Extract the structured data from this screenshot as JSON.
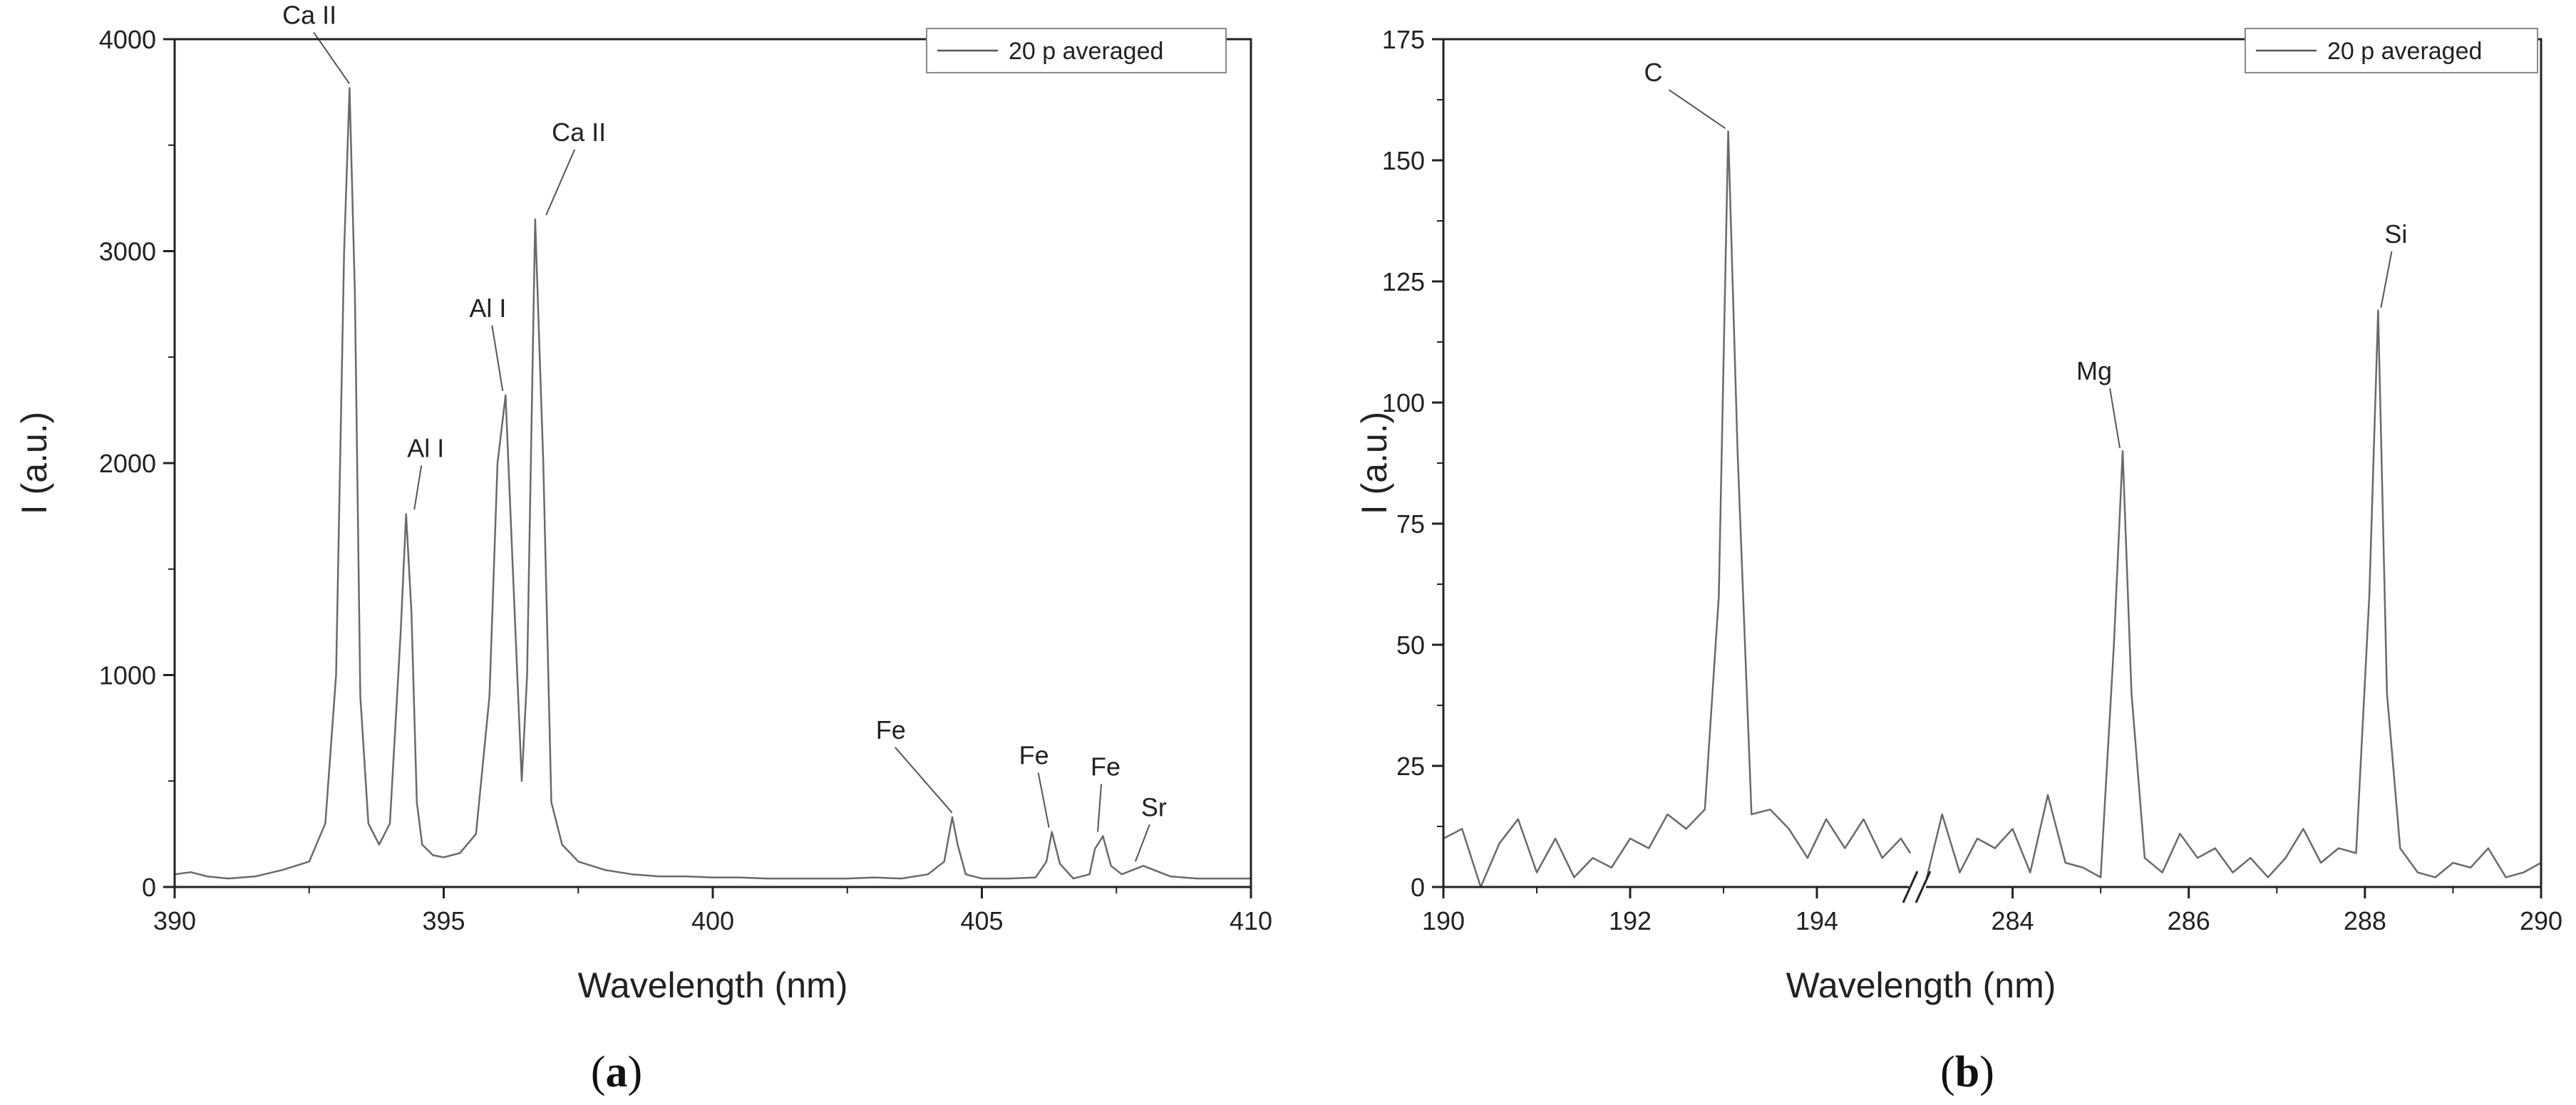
{
  "chart_data": [
    {
      "panel": "(a)",
      "panel_letter": "a",
      "type": "line",
      "xlabel": "Wavelength (nm)",
      "ylabel": "I (a.u.)",
      "xlim": [
        390,
        410
      ],
      "ylim": [
        0,
        4000
      ],
      "xticks": [
        390,
        395,
        400,
        405,
        410
      ],
      "yticks": [
        0,
        1000,
        2000,
        3000,
        4000
      ],
      "legend": {
        "label": "20 p averaged",
        "position": "top-right"
      },
      "series": [
        {
          "name": "20 p averaged",
          "x": [
            390.0,
            390.3,
            390.6,
            391.0,
            391.5,
            392.0,
            392.5,
            392.8,
            393.0,
            393.15,
            393.25,
            393.35,
            393.45,
            393.6,
            393.8,
            394.0,
            394.2,
            394.3,
            394.4,
            394.5,
            394.6,
            394.8,
            395.0,
            395.3,
            395.6,
            395.85,
            396.0,
            396.15,
            396.3,
            396.45,
            396.55,
            396.7,
            396.85,
            397.0,
            397.2,
            397.5,
            398.0,
            398.5,
            399.0,
            399.5,
            400.0,
            400.5,
            401.0,
            401.5,
            402.0,
            402.5,
            403.0,
            403.5,
            404.0,
            404.3,
            404.45,
            404.55,
            404.7,
            405.0,
            405.5,
            406.0,
            406.2,
            406.3,
            406.45,
            406.7,
            407.0,
            407.1,
            407.25,
            407.4,
            407.6,
            407.8,
            408.0,
            408.5,
            409.0,
            409.5,
            410.0
          ],
          "y": [
            60,
            70,
            50,
            40,
            50,
            80,
            120,
            300,
            1000,
            3000,
            3770,
            2800,
            900,
            300,
            200,
            300,
            1200,
            1760,
            1300,
            400,
            200,
            150,
            140,
            160,
            250,
            900,
            2000,
            2320,
            1400,
            500,
            1000,
            3150,
            2000,
            400,
            200,
            120,
            80,
            60,
            50,
            50,
            45,
            45,
            40,
            40,
            40,
            40,
            45,
            40,
            60,
            120,
            330,
            200,
            60,
            40,
            40,
            45,
            120,
            260,
            110,
            40,
            60,
            180,
            240,
            100,
            60,
            80,
            100,
            50,
            40,
            40,
            40
          ]
        }
      ],
      "annotations": [
        {
          "text": "Ca II",
          "x": 393.3,
          "y": 3770
        },
        {
          "text": "Al I",
          "x": 394.4,
          "y": 1760
        },
        {
          "text": "Al I",
          "x": 396.15,
          "y": 2320
        },
        {
          "text": "Ca II",
          "x": 396.85,
          "y": 3150
        },
        {
          "text": "Fe",
          "x": 404.5,
          "y": 330
        },
        {
          "text": "Fe",
          "x": 406.3,
          "y": 260
        },
        {
          "text": "Fe",
          "x": 407.1,
          "y": 240
        },
        {
          "text": "Sr",
          "x": 407.8,
          "y": 100
        }
      ]
    },
    {
      "panel": "(b)",
      "panel_letter": "b",
      "type": "line",
      "xlabel": "Wavelength (nm)",
      "ylabel": "I (a.u.)",
      "x_axis_break": {
        "segments": [
          [
            190,
            195
          ],
          [
            283,
            290
          ]
        ]
      },
      "xticks": [
        190,
        192,
        194,
        284,
        286,
        288,
        290
      ],
      "ylim": [
        0,
        175
      ],
      "yticks": [
        0,
        25,
        50,
        75,
        100,
        125,
        150,
        175
      ],
      "legend": {
        "label": "20 p averaged",
        "position": "top-right"
      },
      "series": [
        {
          "name": "20 p averaged",
          "x": [
            190.0,
            190.2,
            190.4,
            190.6,
            190.8,
            191.0,
            191.2,
            191.4,
            191.6,
            191.8,
            192.0,
            192.2,
            192.4,
            192.6,
            192.8,
            192.95,
            193.05,
            193.15,
            193.3,
            193.5,
            193.7,
            193.9,
            194.1,
            194.3,
            194.5,
            194.7,
            194.9,
            195.0,
            283.0,
            283.2,
            283.4,
            283.6,
            283.8,
            284.0,
            284.2,
            284.4,
            284.6,
            284.8,
            285.0,
            285.15,
            285.25,
            285.35,
            285.5,
            285.7,
            285.9,
            286.1,
            286.3,
            286.5,
            286.7,
            286.9,
            287.1,
            287.3,
            287.5,
            287.7,
            287.9,
            288.05,
            288.15,
            288.25,
            288.4,
            288.6,
            288.8,
            289.0,
            289.2,
            289.4,
            289.6,
            289.8,
            290.0
          ],
          "y": [
            10,
            12,
            0,
            9,
            14,
            3,
            10,
            2,
            6,
            4,
            10,
            8,
            15,
            12,
            16,
            60,
            156,
            90,
            15,
            16,
            12,
            6,
            14,
            8,
            14,
            6,
            10,
            7,
            0,
            15,
            3,
            10,
            8,
            12,
            3,
            19,
            5,
            4,
            2,
            50,
            90,
            40,
            6,
            3,
            11,
            6,
            8,
            3,
            6,
            2,
            6,
            12,
            5,
            8,
            7,
            60,
            119,
            40,
            8,
            3,
            2,
            5,
            4,
            8,
            2,
            3,
            5
          ]
        }
      ],
      "annotations": [
        {
          "text": "C",
          "x": 193.05,
          "y": 156
        },
        {
          "text": "Mg",
          "x": 285.25,
          "y": 90
        },
        {
          "text": "Si",
          "x": 288.15,
          "y": 119
        }
      ]
    }
  ]
}
